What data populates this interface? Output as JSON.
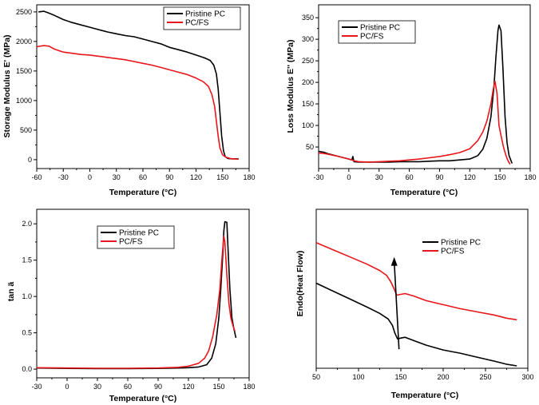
{
  "colors": {
    "pristine": "#000000",
    "pcfs": "#e8161b",
    "axis": "#000000"
  },
  "chart_data": [
    {
      "id": "storage",
      "type": "line",
      "title": "",
      "xlabel": "Temperature (°C)",
      "ylabel": "Storage Modulus E' (MPa)",
      "xlim": [
        -60,
        180
      ],
      "ylim": [
        -150,
        2620
      ],
      "xticks": [
        -60,
        -30,
        0,
        30,
        60,
        90,
        120,
        150,
        180
      ],
      "yticks": [
        0,
        500,
        1000,
        1500,
        2000,
        2500
      ],
      "legend": {
        "position": "top-right",
        "labels": [
          "Pristine PC",
          "PC/FS"
        ]
      },
      "series": [
        {
          "name": "Pristine PC",
          "color": "#000000",
          "points": [
            [
              -58,
              2500
            ],
            [
              -52,
              2510
            ],
            [
              -48,
              2490
            ],
            [
              -40,
              2440
            ],
            [
              -30,
              2370
            ],
            [
              -20,
              2320
            ],
            [
              -10,
              2280
            ],
            [
              0,
              2240
            ],
            [
              10,
              2200
            ],
            [
              20,
              2160
            ],
            [
              30,
              2130
            ],
            [
              40,
              2100
            ],
            [
              50,
              2080
            ],
            [
              60,
              2040
            ],
            [
              70,
              2000
            ],
            [
              80,
              1960
            ],
            [
              90,
              1900
            ],
            [
              100,
              1860
            ],
            [
              110,
              1820
            ],
            [
              120,
              1770
            ],
            [
              130,
              1720
            ],
            [
              136,
              1680
            ],
            [
              140,
              1600
            ],
            [
              143,
              1450
            ],
            [
              145,
              1200
            ],
            [
              147,
              800
            ],
            [
              149,
              400
            ],
            [
              151,
              150
            ],
            [
              153,
              50
            ],
            [
              156,
              20
            ],
            [
              160,
              15
            ],
            [
              168,
              15
            ]
          ]
        },
        {
          "name": "PC/FS",
          "color": "#e8161b",
          "points": [
            [
              -60,
              1910
            ],
            [
              -52,
              1930
            ],
            [
              -46,
              1920
            ],
            [
              -40,
              1870
            ],
            [
              -30,
              1820
            ],
            [
              -20,
              1800
            ],
            [
              -10,
              1780
            ],
            [
              0,
              1770
            ],
            [
              10,
              1750
            ],
            [
              20,
              1730
            ],
            [
              30,
              1710
            ],
            [
              40,
              1690
            ],
            [
              50,
              1660
            ],
            [
              60,
              1630
            ],
            [
              70,
              1600
            ],
            [
              80,
              1560
            ],
            [
              90,
              1520
            ],
            [
              100,
              1480
            ],
            [
              110,
              1440
            ],
            [
              120,
              1380
            ],
            [
              128,
              1320
            ],
            [
              134,
              1240
            ],
            [
              138,
              1100
            ],
            [
              141,
              900
            ],
            [
              143,
              650
            ],
            [
              145,
              400
            ],
            [
              147,
              200
            ],
            [
              150,
              80
            ],
            [
              154,
              40
            ],
            [
              160,
              15
            ],
            [
              168,
              10
            ]
          ]
        }
      ]
    },
    {
      "id": "loss",
      "type": "line",
      "title": "",
      "xlabel": "Temperature (°C)",
      "ylabel": "Loss Modulus  E'' (MPa)",
      "xlim": [
        -30,
        180
      ],
      "ylim": [
        0,
        380
      ],
      "xticks": [
        -30,
        0,
        30,
        60,
        90,
        120,
        150,
        180
      ],
      "yticks": [
        50,
        100,
        150,
        200,
        250,
        300,
        350
      ],
      "legend": {
        "position": "top-right",
        "labels": [
          "Pristine PC",
          "PC/FS"
        ]
      },
      "series": [
        {
          "name": "Pristine PC",
          "color": "#000000",
          "points": [
            [
              -30,
              40
            ],
            [
              -25,
              38
            ],
            [
              -20,
              34
            ],
            [
              -10,
              28
            ],
            [
              0,
              22
            ],
            [
              3,
              20
            ],
            [
              4,
              28
            ],
            [
              5,
              16
            ],
            [
              10,
              15
            ],
            [
              20,
              15
            ],
            [
              30,
              15
            ],
            [
              40,
              15
            ],
            [
              50,
              16
            ],
            [
              60,
              16
            ],
            [
              70,
              16
            ],
            [
              80,
              17
            ],
            [
              90,
              18
            ],
            [
              100,
              18
            ],
            [
              110,
              20
            ],
            [
              120,
              22
            ],
            [
              128,
              30
            ],
            [
              133,
              45
            ],
            [
              137,
              70
            ],
            [
              141,
              120
            ],
            [
              144,
              190
            ],
            [
              146,
              260
            ],
            [
              148,
              320
            ],
            [
              149,
              333
            ],
            [
              151,
              320
            ],
            [
              153,
              230
            ],
            [
              155,
              120
            ],
            [
              157,
              60
            ],
            [
              159,
              30
            ],
            [
              162,
              12
            ]
          ]
        },
        {
          "name": "PC/FS",
          "color": "#e8161b",
          "points": [
            [
              -30,
              36
            ],
            [
              -25,
              35
            ],
            [
              -20,
              33
            ],
            [
              -10,
              28
            ],
            [
              0,
              22
            ],
            [
              3,
              20
            ],
            [
              5,
              18
            ],
            [
              10,
              16
            ],
            [
              20,
              15
            ],
            [
              30,
              16
            ],
            [
              40,
              17
            ],
            [
              50,
              18
            ],
            [
              60,
              20
            ],
            [
              70,
              22
            ],
            [
              80,
              25
            ],
            [
              90,
              28
            ],
            [
              100,
              32
            ],
            [
              110,
              37
            ],
            [
              120,
              46
            ],
            [
              128,
              65
            ],
            [
              133,
              85
            ],
            [
              137,
              110
            ],
            [
              141,
              150
            ],
            [
              143,
              180
            ],
            [
              145,
              203
            ],
            [
              147,
              175
            ],
            [
              149,
              100
            ],
            [
              152,
              65
            ],
            [
              154,
              45
            ],
            [
              156,
              30
            ],
            [
              158,
              18
            ],
            [
              160,
              10
            ]
          ]
        }
      ]
    },
    {
      "id": "tand",
      "type": "line",
      "title": "",
      "xlabel": "Temperature (°C)",
      "ylabel": "tan ä",
      "xlim": [
        -30,
        180
      ],
      "ylim": [
        -0.12,
        2.2
      ],
      "xticks": [
        -30,
        0,
        30,
        60,
        90,
        120,
        150,
        180
      ],
      "yticks": [
        0.0,
        0.5,
        1.0,
        1.5,
        2.0
      ],
      "ytick_labels": [
        "0.0",
        "0.5",
        "1.0",
        "1.5",
        "2.0"
      ],
      "legend": {
        "position": "top-right",
        "labels": [
          "Pristine PC",
          "PC/FS"
        ]
      },
      "series": [
        {
          "name": "Pristine PC",
          "color": "#000000",
          "points": [
            [
              -30,
              0.015
            ],
            [
              0,
              0.01
            ],
            [
              30,
              0.008
            ],
            [
              60,
              0.008
            ],
            [
              90,
              0.01
            ],
            [
              110,
              0.015
            ],
            [
              120,
              0.02
            ],
            [
              130,
              0.03
            ],
            [
              138,
              0.06
            ],
            [
              143,
              0.15
            ],
            [
              147,
              0.35
            ],
            [
              150,
              0.7
            ],
            [
              152,
              1.1
            ],
            [
              154,
              1.6
            ],
            [
              155,
              1.9
            ],
            [
              156,
              2.03
            ],
            [
              158,
              2.02
            ],
            [
              159,
              1.7
            ],
            [
              161,
              1.1
            ],
            [
              163,
              0.7
            ],
            [
              165,
              0.55
            ],
            [
              167,
              0.43
            ]
          ]
        },
        {
          "name": "PC/FS",
          "color": "#e8161b",
          "points": [
            [
              -30,
              0.02
            ],
            [
              0,
              0.015
            ],
            [
              30,
              0.012
            ],
            [
              60,
              0.012
            ],
            [
              90,
              0.015
            ],
            [
              110,
              0.025
            ],
            [
              120,
              0.04
            ],
            [
              130,
              0.08
            ],
            [
              136,
              0.15
            ],
            [
              140,
              0.25
            ],
            [
              144,
              0.45
            ],
            [
              148,
              0.75
            ],
            [
              151,
              1.1
            ],
            [
              153,
              1.5
            ],
            [
              155,
              1.83
            ],
            [
              156,
              1.75
            ],
            [
              158,
              1.3
            ],
            [
              160,
              0.9
            ],
            [
              162,
              0.7
            ],
            [
              164,
              0.6
            ],
            [
              166,
              0.52
            ]
          ]
        }
      ]
    },
    {
      "id": "dsc",
      "type": "line",
      "title": "",
      "xlabel": "Temperature (°C)",
      "ylabel": "Endo(Heat Flow)",
      "xlim": [
        50,
        300
      ],
      "ylim": [
        0,
        1
      ],
      "xticks": [
        50,
        100,
        150,
        200,
        250,
        300
      ],
      "yticks": [],
      "legend": {
        "position": "top-right",
        "labels": [
          "Pristine PC",
          "PC/FS"
        ]
      },
      "annotation": "upward arrow near 145 °C",
      "series": [
        {
          "name": "Pristine PC",
          "color": "#000000",
          "points": [
            [
              50,
              0.535
            ],
            [
              70,
              0.485
            ],
            [
              90,
              0.435
            ],
            [
              110,
              0.385
            ],
            [
              125,
              0.345
            ],
            [
              135,
              0.31
            ],
            [
              140,
              0.27
            ],
            [
              143,
              0.22
            ],
            [
              146,
              0.185
            ],
            [
              150,
              0.19
            ],
            [
              155,
              0.195
            ],
            [
              165,
              0.175
            ],
            [
              180,
              0.145
            ],
            [
              200,
              0.115
            ],
            [
              220,
              0.095
            ],
            [
              240,
              0.07
            ],
            [
              260,
              0.045
            ],
            [
              275,
              0.025
            ],
            [
              287,
              0.015
            ]
          ]
        },
        {
          "name": "PC/FS",
          "color": "#e8161b",
          "points": [
            [
              50,
              0.79
            ],
            [
              70,
              0.745
            ],
            [
              90,
              0.7
            ],
            [
              110,
              0.655
            ],
            [
              125,
              0.615
            ],
            [
              133,
              0.585
            ],
            [
              138,
              0.545
            ],
            [
              142,
              0.5
            ],
            [
              145,
              0.46
            ],
            [
              150,
              0.465
            ],
            [
              155,
              0.47
            ],
            [
              165,
              0.455
            ],
            [
              180,
              0.425
            ],
            [
              200,
              0.4
            ],
            [
              220,
              0.375
            ],
            [
              240,
              0.355
            ],
            [
              260,
              0.335
            ],
            [
              275,
              0.315
            ],
            [
              287,
              0.305
            ]
          ]
        }
      ]
    }
  ]
}
